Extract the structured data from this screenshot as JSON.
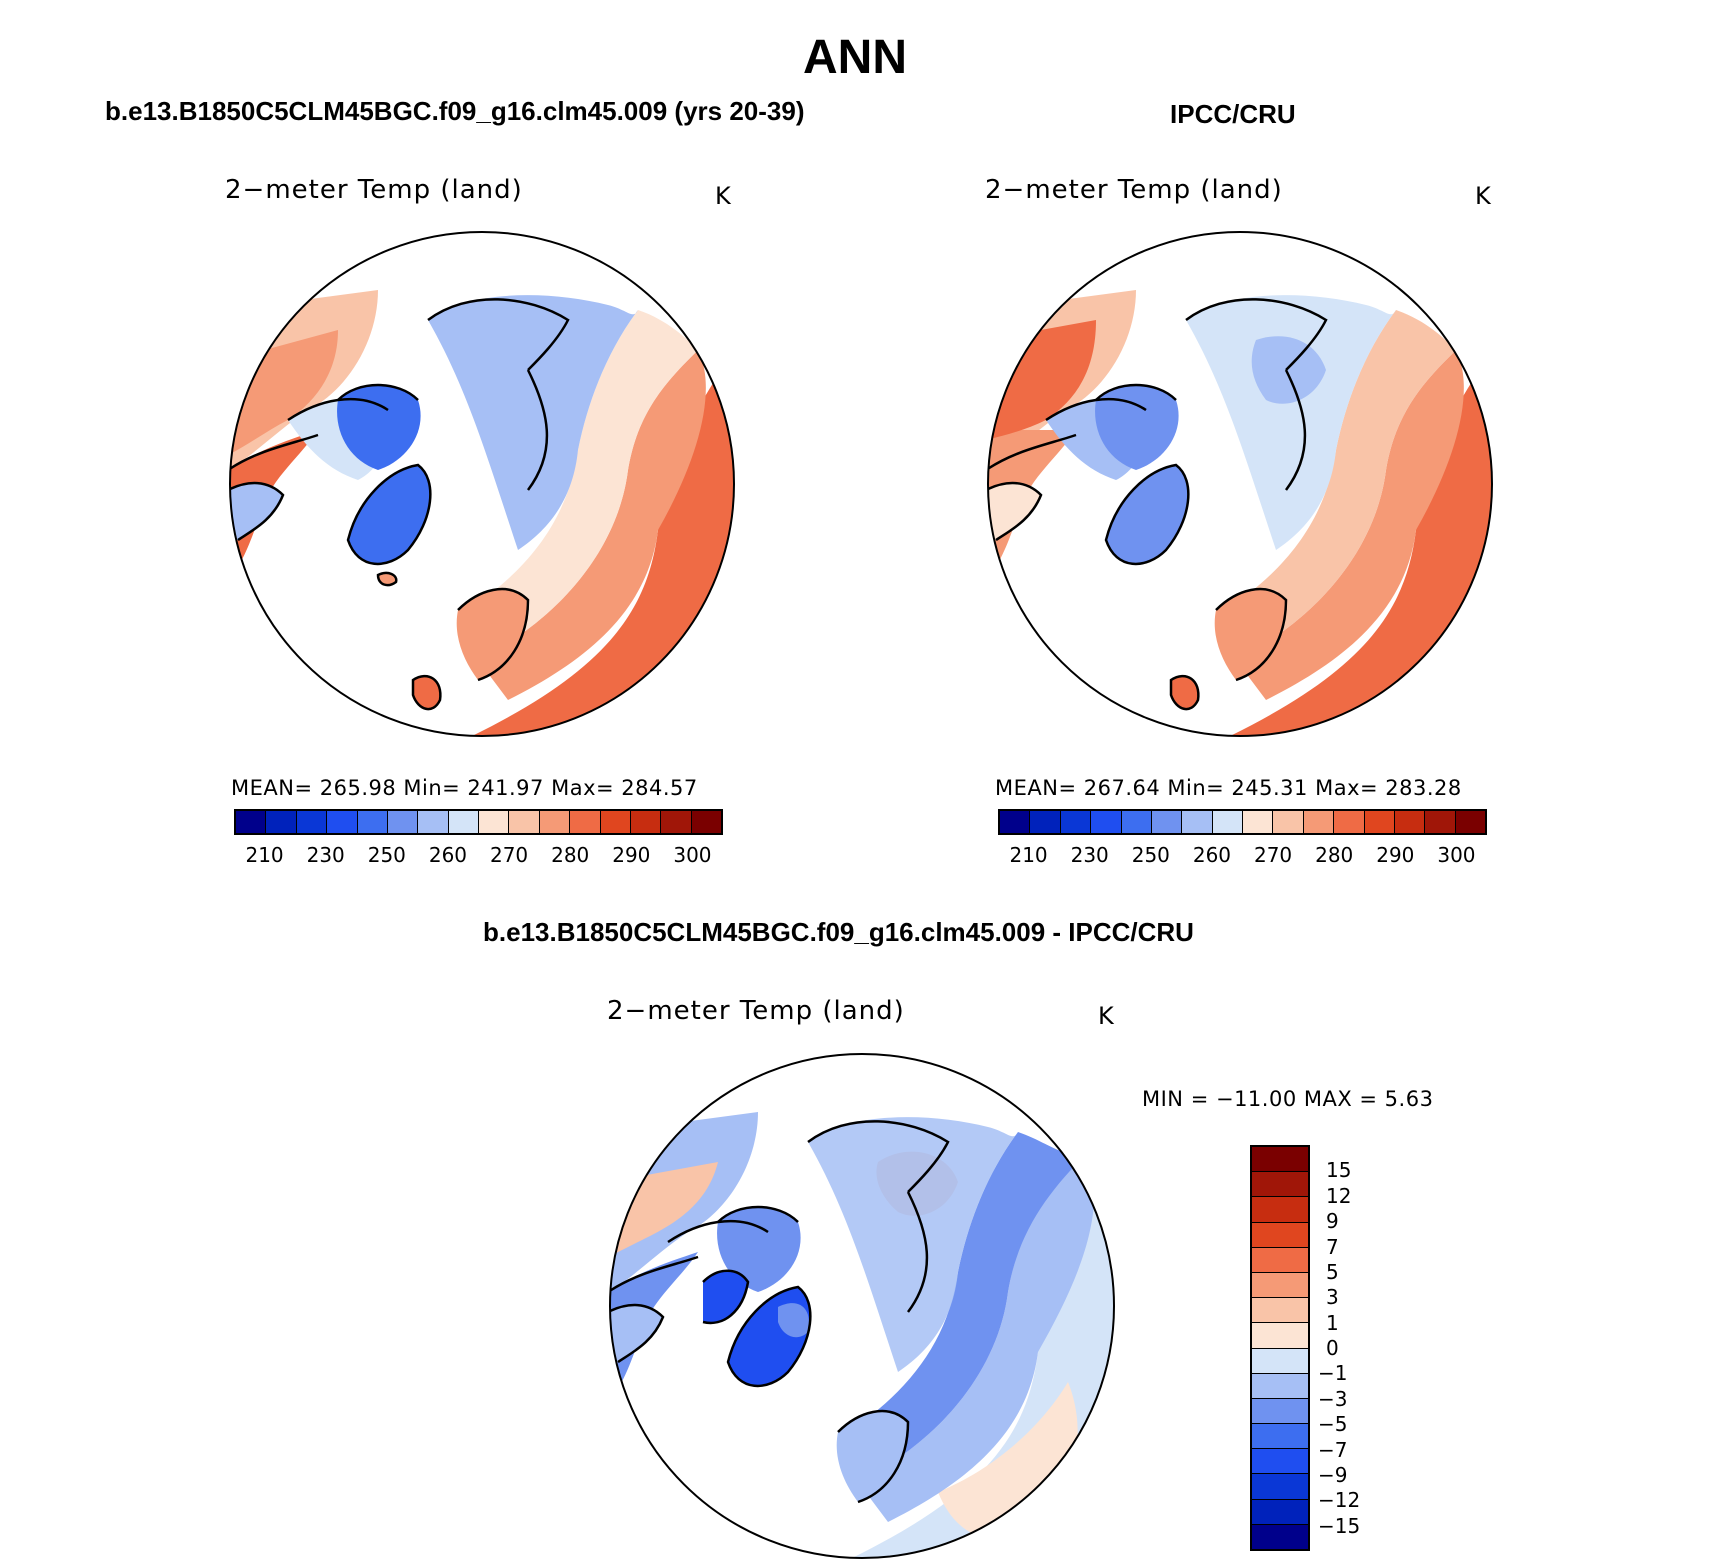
{
  "title": "ANN",
  "panels": {
    "model": {
      "case_title": "b.e13.B1850C5CLM45BGC.f09_g16.clm45.009 (yrs 20-39)",
      "variable": "2−meter Temp (land)",
      "units": "K",
      "stats": "MEAN= 265.98   Min= 241.97   Max= 284.57"
    },
    "obs": {
      "case_title": "IPCC/CRU",
      "variable": "2−meter Temp (land)",
      "units": "K",
      "stats": "MEAN= 267.64   Min= 245.31   Max= 283.28"
    },
    "diff": {
      "case_title": "b.e13.B1850C5CLM45BGC.f09_g16.clm45.009 - IPCC/CRU",
      "variable": "2−meter Temp (land)",
      "units": "K",
      "minmax": "MIN = −11.00 MAX =    5.63"
    }
  },
  "abs_colorbar": {
    "colors": [
      "#00008b",
      "#0022bb",
      "#0a37d6",
      "#1f4ef0",
      "#3d6ef0",
      "#6f92f0",
      "#a6bff5",
      "#d4e4f8",
      "#fce4d4",
      "#f9c4a8",
      "#f59a76",
      "#ef6b45",
      "#e0461f",
      "#c72d10",
      "#a01608",
      "#7a0000"
    ],
    "labels": [
      "210",
      "230",
      "250",
      "260",
      "270",
      "280",
      "290",
      "300"
    ]
  },
  "diff_colorbar": {
    "colors": [
      "#7a0000",
      "#a01608",
      "#c72d10",
      "#e0461f",
      "#ef6b45",
      "#f59a76",
      "#f9c4a8",
      "#fce4d4",
      "#d4e4f8",
      "#a6bff5",
      "#6f92f0",
      "#3d6ef0",
      "#1f4ef0",
      "#0a37d6",
      "#0022bb",
      "#00008b"
    ],
    "labels": [
      "15",
      "12",
      "9",
      "7",
      "5",
      "3",
      "1",
      "0",
      "−1",
      "−3",
      "−5",
      "−7",
      "−9",
      "−12",
      "−15"
    ]
  },
  "map_colors": {
    "warm_strong": "#ef6b45",
    "warm": "#f59a76",
    "warm_light": "#f9c4a8",
    "neutral_warm": "#fce4d4",
    "cool_light": "#d4e4f8",
    "cool": "#a6bff5",
    "cool_mid": "#6f92f0",
    "cool_strong": "#3d6ef0",
    "cool_deep": "#1f4ef0"
  }
}
